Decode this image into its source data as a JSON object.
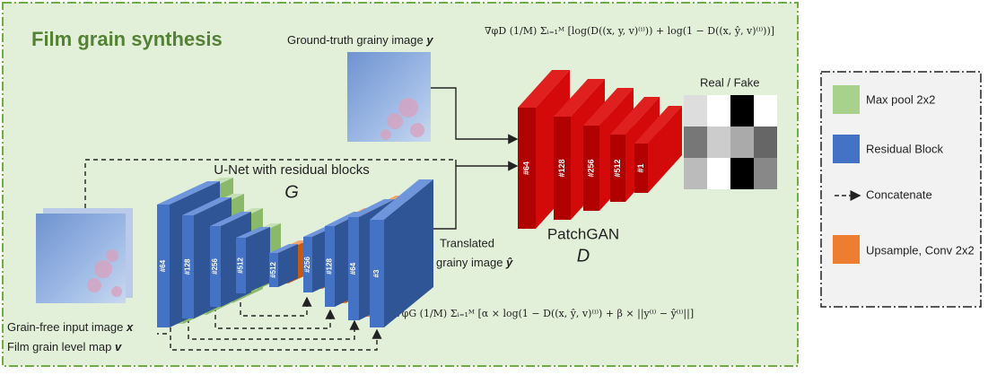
{
  "title": "Film grain synthesis",
  "ground_truth": {
    "text": "Ground-truth grainy image ",
    "var": "y"
  },
  "discriminator_loss": "∇φD (1/M) Σᵢ₌₁ᴹ [log(D((x, y, v)⁽ⁱ⁾)) + log(1 − D((x, ŷ, v)⁽ⁱ⁾))]",
  "generator_loss": "∇φG (1/M) Σᵢ₌₁ᴹ [α × log(1 − D((x, ŷ, v)⁽ⁱ⁾) + β × ||y⁽ⁱ⁾ − ŷ⁽ⁱ⁾||]",
  "real_fake": "Real / Fake",
  "generator": {
    "name": "U-Net with residual blocks",
    "symbol": "G"
  },
  "translated": {
    "line1": "Translated",
    "line2": "grainy image ",
    "var": "ŷ"
  },
  "discriminator": {
    "name": "PatchGAN",
    "symbol": "D"
  },
  "input_image": {
    "text": "Grain-free input image ",
    "var": "x"
  },
  "level_map": {
    "text": "Film grain level map ",
    "var": "v"
  },
  "unet_blocks": [
    "#64",
    "#128",
    "#256",
    "#512",
    "#512",
    "#256",
    "#128",
    "#64",
    "#3"
  ],
  "patchgan_blocks": [
    "#64",
    "#128",
    "#256",
    "#512",
    "#1"
  ],
  "legend": [
    "Max pool 2x2",
    "Residual Block",
    "Concatenate",
    "Upsample, Conv 2x2"
  ]
}
